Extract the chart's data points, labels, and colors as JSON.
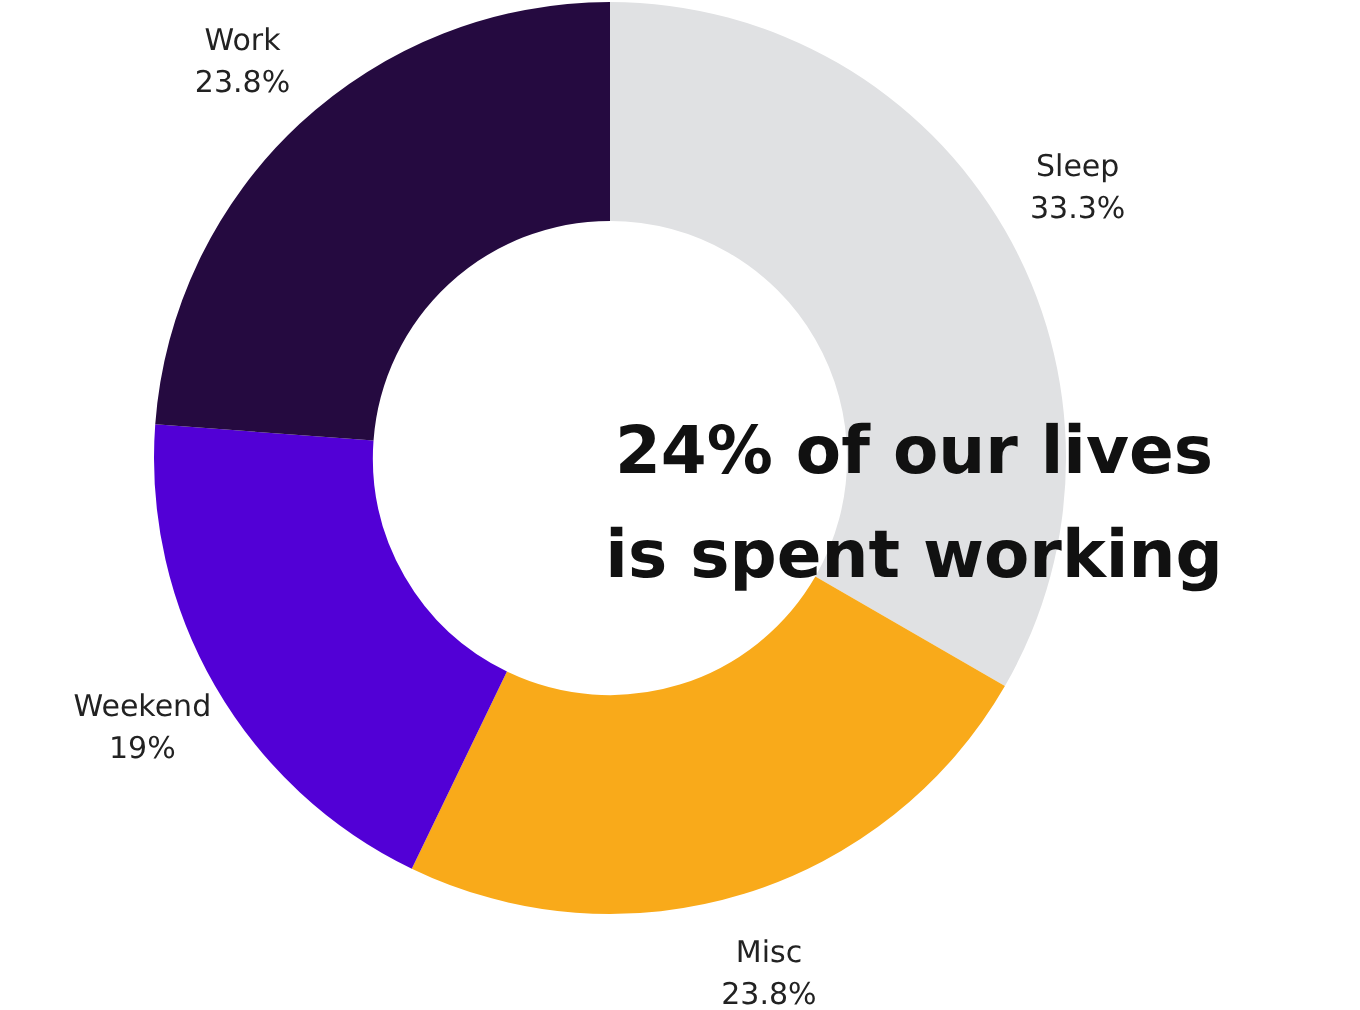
{
  "chart_data": {
    "type": "donut",
    "categories": [
      "Sleep",
      "Misc",
      "Weekend",
      "Work"
    ],
    "values": [
      33.3,
      23.8,
      19,
      23.8
    ],
    "colors": [
      "#e0e1e3",
      "#f9aa1a",
      "#5200d6",
      "#250a40"
    ],
    "value_labels": [
      "33.3%",
      "23.8%",
      "19%",
      "23.8%"
    ],
    "annotations": [
      "24% of our lives is spent working"
    ],
    "legend": false
  }
}
